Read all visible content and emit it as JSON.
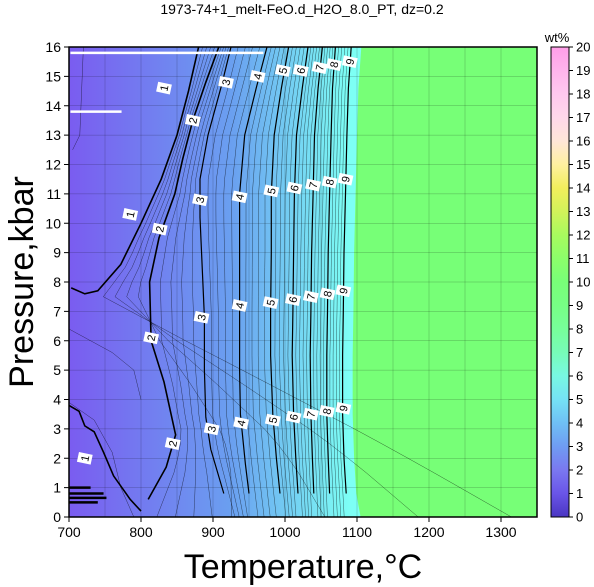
{
  "chart_data": {
    "type": "heatmap",
    "title": "1973-74+1_melt-FeO.d_H2O_8.0_PT, dz=0.2",
    "xlabel": "Temperature,°C",
    "ylabel": "Pressure,kbar",
    "xlim": [
      700,
      1350
    ],
    "ylim": [
      0,
      16
    ],
    "x_ticks": [
      "700",
      "800",
      "900",
      "1000",
      "1100",
      "1200",
      "1300"
    ],
    "y_ticks": [
      "0",
      "1",
      "2",
      "3",
      "4",
      "5",
      "6",
      "7",
      "8",
      "9",
      "10",
      "11",
      "12",
      "13",
      "14",
      "15",
      "16"
    ],
    "grid": true,
    "colorbar": {
      "title": "wt%",
      "range": [
        0,
        20
      ],
      "ticks": [
        "0",
        "1",
        "2",
        "3",
        "4",
        "5",
        "6",
        "7",
        "8",
        "9",
        "10",
        "11",
        "12",
        "13",
        "14",
        "15",
        "16",
        "17",
        "18",
        "19",
        "20"
      ]
    },
    "plateau_value": 12,
    "contours": [
      {
        "level": 1,
        "points": [
          [
            703,
            7.8
          ],
          [
            722,
            7.6
          ],
          [
            740,
            7.7
          ],
          [
            772,
            8.6
          ],
          [
            800,
            10.0
          ],
          [
            828,
            11.5
          ],
          [
            850,
            13.0
          ],
          [
            866,
            14.5
          ],
          [
            880,
            16.0
          ]
        ]
      },
      {
        "level": 2,
        "points": [
          [
            810,
            0.6
          ],
          [
            835,
            1.7
          ],
          [
            848,
            2.8
          ],
          [
            832,
            4.6
          ],
          [
            814,
            6.0
          ],
          [
            812,
            8.0
          ],
          [
            825,
            9.5
          ],
          [
            847,
            11.0
          ],
          [
            858,
            12.2
          ],
          [
            872,
            13.5
          ],
          [
            890,
            14.8
          ],
          [
            908,
            16.0
          ]
        ]
      },
      {
        "level": 3,
        "points": [
          [
            915,
            0.8
          ],
          [
            897,
            2.3
          ],
          [
            890,
            3.4
          ],
          [
            888,
            5.0
          ],
          [
            888,
            6.8
          ],
          [
            885,
            8.5
          ],
          [
            882,
            10.2
          ],
          [
            882,
            11.5
          ],
          [
            893,
            13.0
          ],
          [
            912,
            14.7
          ],
          [
            925,
            16.0
          ]
        ]
      },
      {
        "level": 4,
        "points": [
          [
            950,
            0.8
          ],
          [
            945,
            1.8
          ],
          [
            938,
            3.5
          ],
          [
            937,
            5.0
          ],
          [
            937,
            7.0
          ],
          [
            937,
            9.0
          ],
          [
            937,
            11.0
          ],
          [
            944,
            13.0
          ],
          [
            960,
            14.6
          ],
          [
            975,
            16.0
          ]
        ]
      },
      {
        "level": 5,
        "points": [
          [
            993,
            0.8
          ],
          [
            988,
            2.0
          ],
          [
            983,
            3.5
          ],
          [
            980,
            5.5
          ],
          [
            980,
            7.0
          ],
          [
            981,
            9.0
          ],
          [
            981,
            11.0
          ],
          [
            985,
            13.0
          ],
          [
            995,
            14.6
          ],
          [
            1005,
            16.0
          ]
        ]
      },
      {
        "level": 6,
        "points": [
          [
            1018,
            0.8
          ],
          [
            1015,
            2.0
          ],
          [
            1012,
            3.5
          ],
          [
            1010,
            5.5
          ],
          [
            1011,
            7.0
          ],
          [
            1012,
            9.0
          ],
          [
            1013,
            11.0
          ],
          [
            1016,
            13.0
          ],
          [
            1024,
            14.6
          ],
          [
            1032,
            16.0
          ]
        ]
      },
      {
        "level": 7,
        "points": [
          [
            1040,
            0.8
          ],
          [
            1038,
            2.0
          ],
          [
            1036,
            3.5
          ],
          [
            1035,
            5.5
          ],
          [
            1036,
            7.0
          ],
          [
            1037,
            9.0
          ],
          [
            1039,
            11.0
          ],
          [
            1041,
            13.0
          ],
          [
            1046,
            14.6
          ],
          [
            1052,
            16.0
          ]
        ]
      },
      {
        "level": 8,
        "points": [
          [
            1062,
            0.8
          ],
          [
            1060,
            2.0
          ],
          [
            1058,
            3.5
          ],
          [
            1058,
            5.5
          ],
          [
            1059,
            7.0
          ],
          [
            1060,
            9.0
          ],
          [
            1062,
            11.0
          ],
          [
            1064,
            13.0
          ],
          [
            1066,
            14.6
          ],
          [
            1070,
            16.0
          ]
        ]
      },
      {
        "level": 9,
        "points": [
          [
            1085,
            0.8
          ],
          [
            1082,
            2.0
          ],
          [
            1080,
            3.5
          ],
          [
            1080,
            5.5
          ],
          [
            1081,
            7.0
          ],
          [
            1082,
            9.0
          ],
          [
            1084,
            11.0
          ],
          [
            1086,
            13.0
          ],
          [
            1088,
            14.6
          ],
          [
            1092,
            16.0
          ]
        ]
      }
    ],
    "contour_labels": [
      {
        "text": "1",
        "t": 722,
        "p": 2.0
      },
      {
        "text": "1",
        "t": 785,
        "p": 10.3
      },
      {
        "text": "1",
        "t": 832,
        "p": 14.6
      },
      {
        "text": "2",
        "t": 844,
        "p": 2.5
      },
      {
        "text": "2",
        "t": 814,
        "p": 6.1
      },
      {
        "text": "2",
        "t": 826,
        "p": 9.8
      },
      {
        "text": "2",
        "t": 872,
        "p": 13.5
      },
      {
        "text": "3",
        "t": 898,
        "p": 3.0
      },
      {
        "text": "3",
        "t": 884,
        "p": 6.8
      },
      {
        "text": "3",
        "t": 882,
        "p": 10.8
      },
      {
        "text": "3",
        "t": 918,
        "p": 14.8
      },
      {
        "text": "4",
        "t": 939,
        "p": 3.2
      },
      {
        "text": "4",
        "t": 937,
        "p": 7.2
      },
      {
        "text": "4",
        "t": 937,
        "p": 10.9
      },
      {
        "text": "4",
        "t": 962,
        "p": 15.0
      },
      {
        "text": "5",
        "t": 983,
        "p": 3.3
      },
      {
        "text": "5",
        "t": 980,
        "p": 7.3
      },
      {
        "text": "5",
        "t": 981,
        "p": 11.1
      },
      {
        "text": "5",
        "t": 997,
        "p": 15.2
      },
      {
        "text": "6",
        "t": 1012,
        "p": 3.4
      },
      {
        "text": "6",
        "t": 1011,
        "p": 7.4
      },
      {
        "text": "6",
        "t": 1013,
        "p": 11.2
      },
      {
        "text": "6",
        "t": 1022,
        "p": 15.2
      },
      {
        "text": "7",
        "t": 1036,
        "p": 3.5
      },
      {
        "text": "7",
        "t": 1036,
        "p": 7.5
      },
      {
        "text": "7",
        "t": 1039,
        "p": 11.3
      },
      {
        "text": "7",
        "t": 1048,
        "p": 15.3
      },
      {
        "text": "8",
        "t": 1058,
        "p": 3.6
      },
      {
        "text": "8",
        "t": 1059,
        "p": 7.6
      },
      {
        "text": "8",
        "t": 1062,
        "p": 11.4
      },
      {
        "text": "8",
        "t": 1068,
        "p": 15.4
      },
      {
        "text": "9",
        "t": 1081,
        "p": 3.7
      },
      {
        "text": "9",
        "t": 1081,
        "p": 7.7
      },
      {
        "text": "9",
        "t": 1084,
        "p": 11.5
      },
      {
        "text": "9",
        "t": 1090,
        "p": 15.5
      }
    ],
    "colors": {
      "low": "#7a5cf0",
      "mid": "#6aa0f0",
      "high": "#7dfff5",
      "plateau": "#77ff77",
      "contour": "#000000",
      "white_line": "#ffffff"
    },
    "colorbar_stops": [
      {
        "v": 0,
        "c": "#4a36c2"
      },
      {
        "v": 1,
        "c": "#6a55e8"
      },
      {
        "v": 2,
        "c": "#7a78f0"
      },
      {
        "v": 3,
        "c": "#6f9cf3"
      },
      {
        "v": 4,
        "c": "#6fc0f5"
      },
      {
        "v": 5,
        "c": "#75e2f5"
      },
      {
        "v": 6,
        "c": "#78f8e2"
      },
      {
        "v": 7,
        "c": "#77fcb8"
      },
      {
        "v": 8,
        "c": "#77ff9a"
      },
      {
        "v": 9,
        "c": "#77ff85"
      },
      {
        "v": 10,
        "c": "#78ff78"
      },
      {
        "v": 11,
        "c": "#8cff6a"
      },
      {
        "v": 12,
        "c": "#a8fb5e"
      },
      {
        "v": 13,
        "c": "#d2f25a"
      },
      {
        "v": 14,
        "c": "#f2ee5c"
      },
      {
        "v": 15,
        "c": "#fff0a0"
      },
      {
        "v": 16,
        "c": "#ffe6d8"
      },
      {
        "v": 17,
        "c": "#ffd8ea"
      },
      {
        "v": 18,
        "c": "#ffc8ee"
      },
      {
        "v": 19,
        "c": "#ffb4ec"
      },
      {
        "v": 20,
        "c": "#ff9ee8"
      }
    ]
  }
}
